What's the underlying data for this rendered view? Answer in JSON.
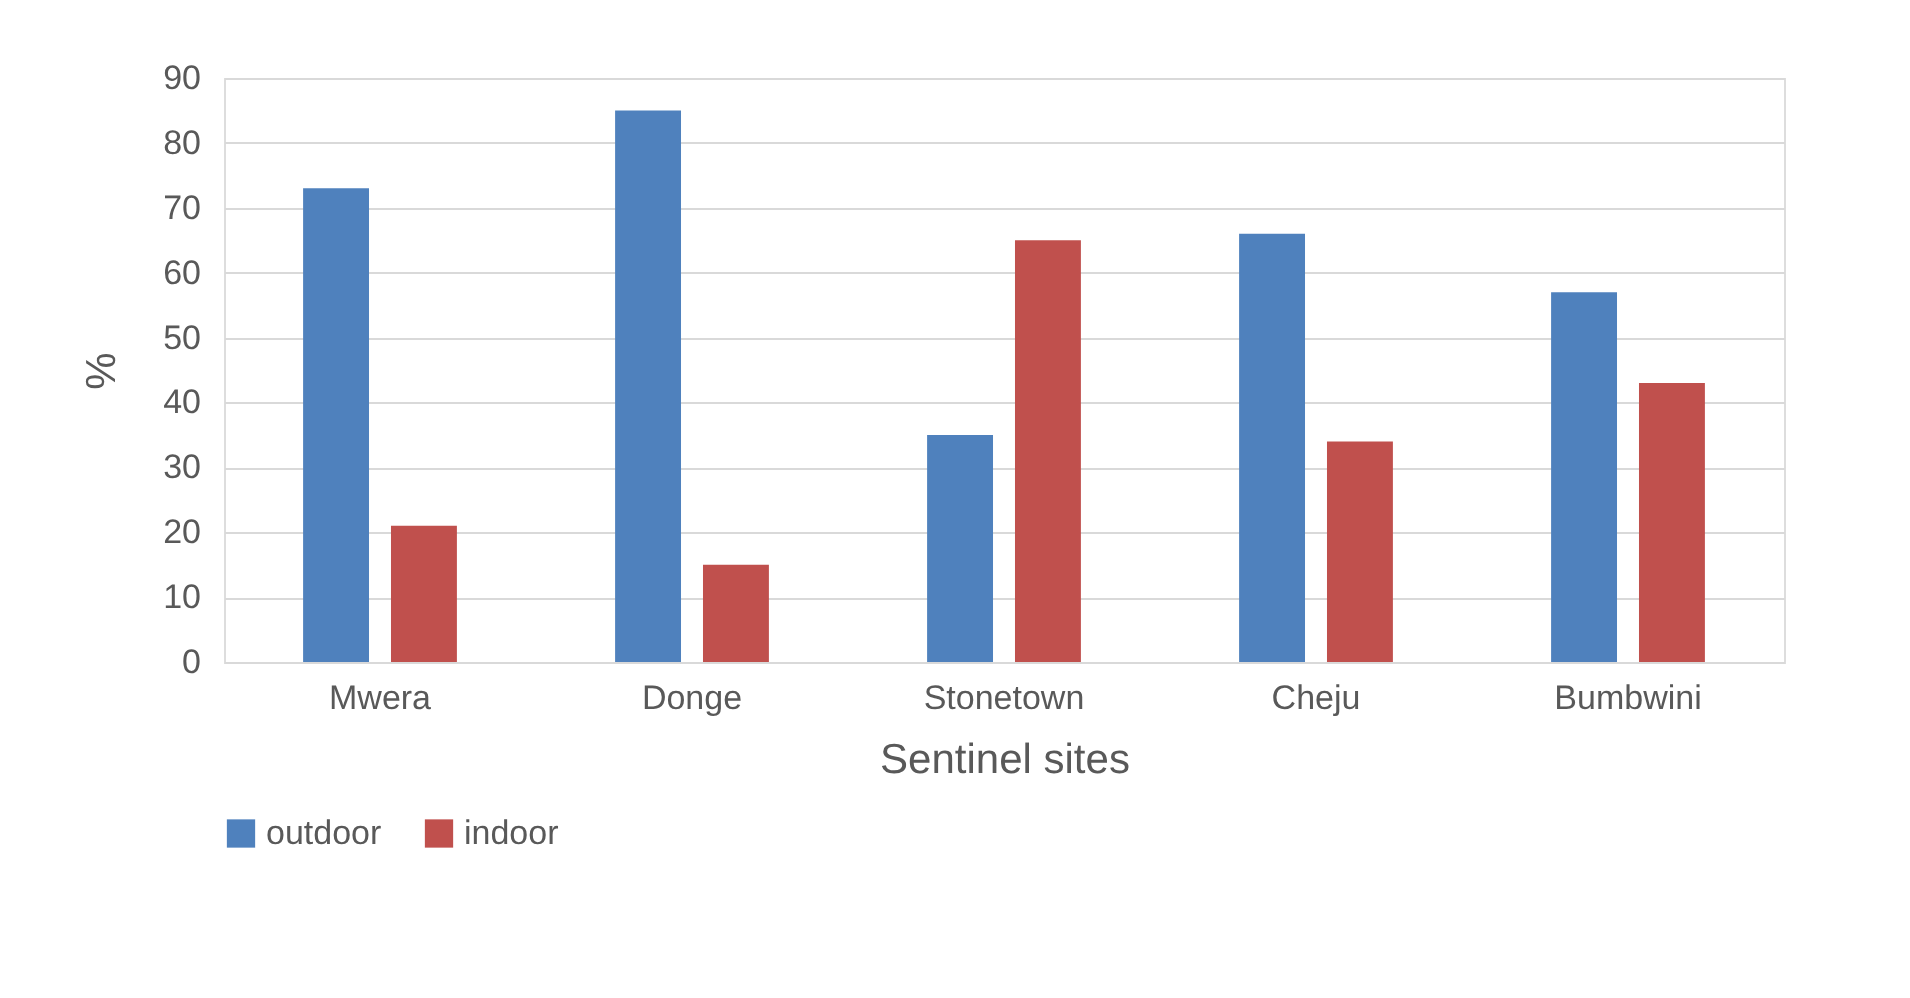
{
  "chart_data": {
    "type": "bar",
    "xlabel": "Sentinel sites",
    "ylabel": "%",
    "categories": [
      "Mwera",
      "Donge",
      "Stonetown",
      "Cheju",
      "Bumbwini"
    ],
    "series": [
      {
        "name": "outdoor",
        "color": "#4f81bd",
        "values": [
          73,
          85,
          35,
          66,
          57
        ]
      },
      {
        "name": "indoor",
        "color": "#c0504d",
        "values": [
          21,
          15,
          65,
          34,
          43
        ]
      }
    ],
    "ylim": [
      0,
      90
    ],
    "yticks": [
      0,
      10,
      20,
      30,
      40,
      50,
      60,
      70,
      80,
      90
    ],
    "grid": "y",
    "legend": "bottom"
  }
}
